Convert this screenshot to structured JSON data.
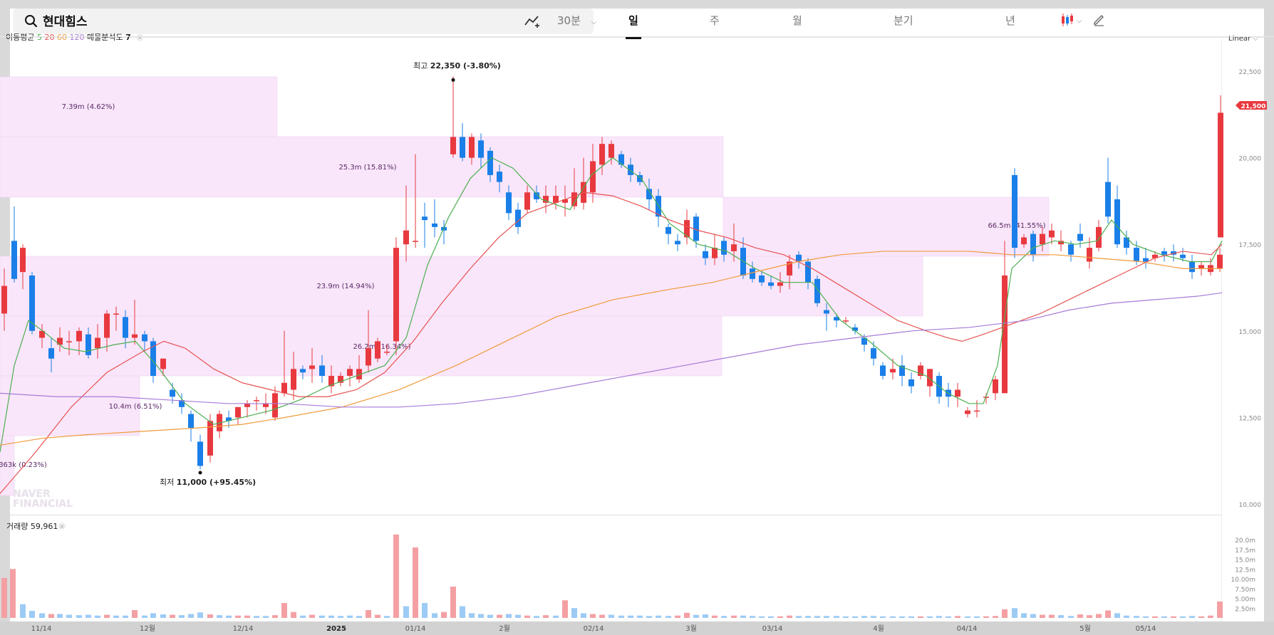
{
  "search": {
    "stock_name": "현대힘스"
  },
  "toolbar": {
    "interval": "30분",
    "periods": [
      "일",
      "주",
      "월",
      "분기",
      "년"
    ],
    "active_period": "일"
  },
  "indicators": {
    "ma_label": "이동평균",
    "ma_periods": [
      "5",
      "20",
      "60",
      "120"
    ],
    "volume_profile_label": "매물분석도",
    "volume_profile_value": "7"
  },
  "scale_mode": "Linear",
  "price_axis": {
    "ticks": [
      "22,500",
      "20,000",
      "17,500",
      "15,000",
      "12,500",
      "10,000"
    ],
    "current_price": "21,500"
  },
  "annotations": {
    "high_prefix": "최고",
    "high_value": "22,350",
    "high_change": "(-3.80%)",
    "low_prefix": "최저",
    "low_value": "11,000",
    "low_change": "(+95.45%)"
  },
  "watermark": {
    "line1": "NAVER",
    "line2": "FINANCIAL"
  },
  "volume_profile_labels": [
    "7.39m (4.62%)",
    "25.3m (15.81%)",
    "23.9m (14.94%)",
    "26.2m (16.34%)",
    "10.4m (6.51%)",
    "363k (0.23%)",
    "66.5m (41.55%)"
  ],
  "volume_panel": {
    "label": "거래량",
    "value": "59,961",
    "ticks": [
      "20.0m",
      "17.5m",
      "15.0m",
      "12.5m",
      "10.00m",
      "7.50m",
      "5.00m",
      "2.50m"
    ]
  },
  "date_axis": [
    "11/14",
    "12월",
    "12/14",
    "2025",
    "01/14",
    "2월",
    "02/14",
    "3월",
    "03/14",
    "4월",
    "04/14",
    "5월",
    "05/14"
  ],
  "colors": {
    "up": "#e8393f",
    "down": "#1a7fe8",
    "vp": "#f9e6fa",
    "ma5": "#4caf50",
    "ma20": "#e75252",
    "ma60": "#f09a3a",
    "ma120": "#a77bd8"
  }
}
